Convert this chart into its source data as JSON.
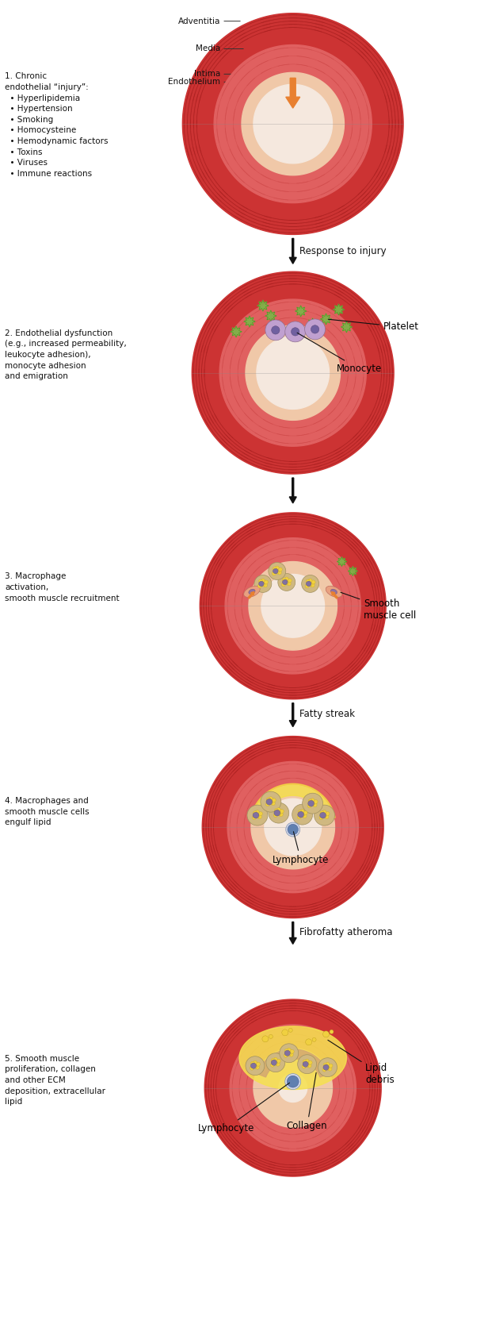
{
  "bg_color": "#ffffff",
  "panel_labels": [
    "1. Chronic\nendothelial “injury”:\n  • Hyperlipidemia\n  • Hypertension\n  • Smoking\n  • Homocysteine\n  • Hemodynamic factors\n  • Toxins\n  • Viruses\n  • Immune reactions",
    "2. Endothelial dysfunction\n(e.g., increased permeability,\nleukocyte adhesion),\nmonocyte adhesion\nand emigration",
    "3. Macrophage\nactivation,\nsmooth muscle recruitment",
    "4. Macrophages and\nsmooth muscle cells\nengulf lipid",
    "5. Smooth muscle\nproliferation, collagen\nand other ECM\ndeposition, extracellular\nlipid"
  ],
  "side_labels": [
    "Endothelium",
    "Intima",
    "Media",
    "Adventitia"
  ],
  "colors": {
    "adventitia": "#cc3333",
    "media": "#e06060",
    "intima": "#f0c8a8",
    "lumen": "#f5e8de",
    "green_cell": "#7ab648",
    "green_edge": "#558820",
    "purple_cell": "#c0a0d0",
    "purple_nuc": "#7060a0",
    "foam_cell": "#d0b880",
    "foam_lipid": "#f0d040",
    "foam_nuc": "#8070a0",
    "smooth_muscle": "#e8a080",
    "smooth_nuc": "#9070a0",
    "lymph_body": "#d0d8e8",
    "lymph_nuc": "#6080b0",
    "orange_arrow": "#e88030",
    "fiber_dark": "#aa2020",
    "fiber_med": "#cc4444",
    "fatty_yellow": "#f5e040",
    "lipid_yellow": "#f5e050",
    "fibrous_cap": "#d4a870",
    "text_color": "#111111"
  }
}
